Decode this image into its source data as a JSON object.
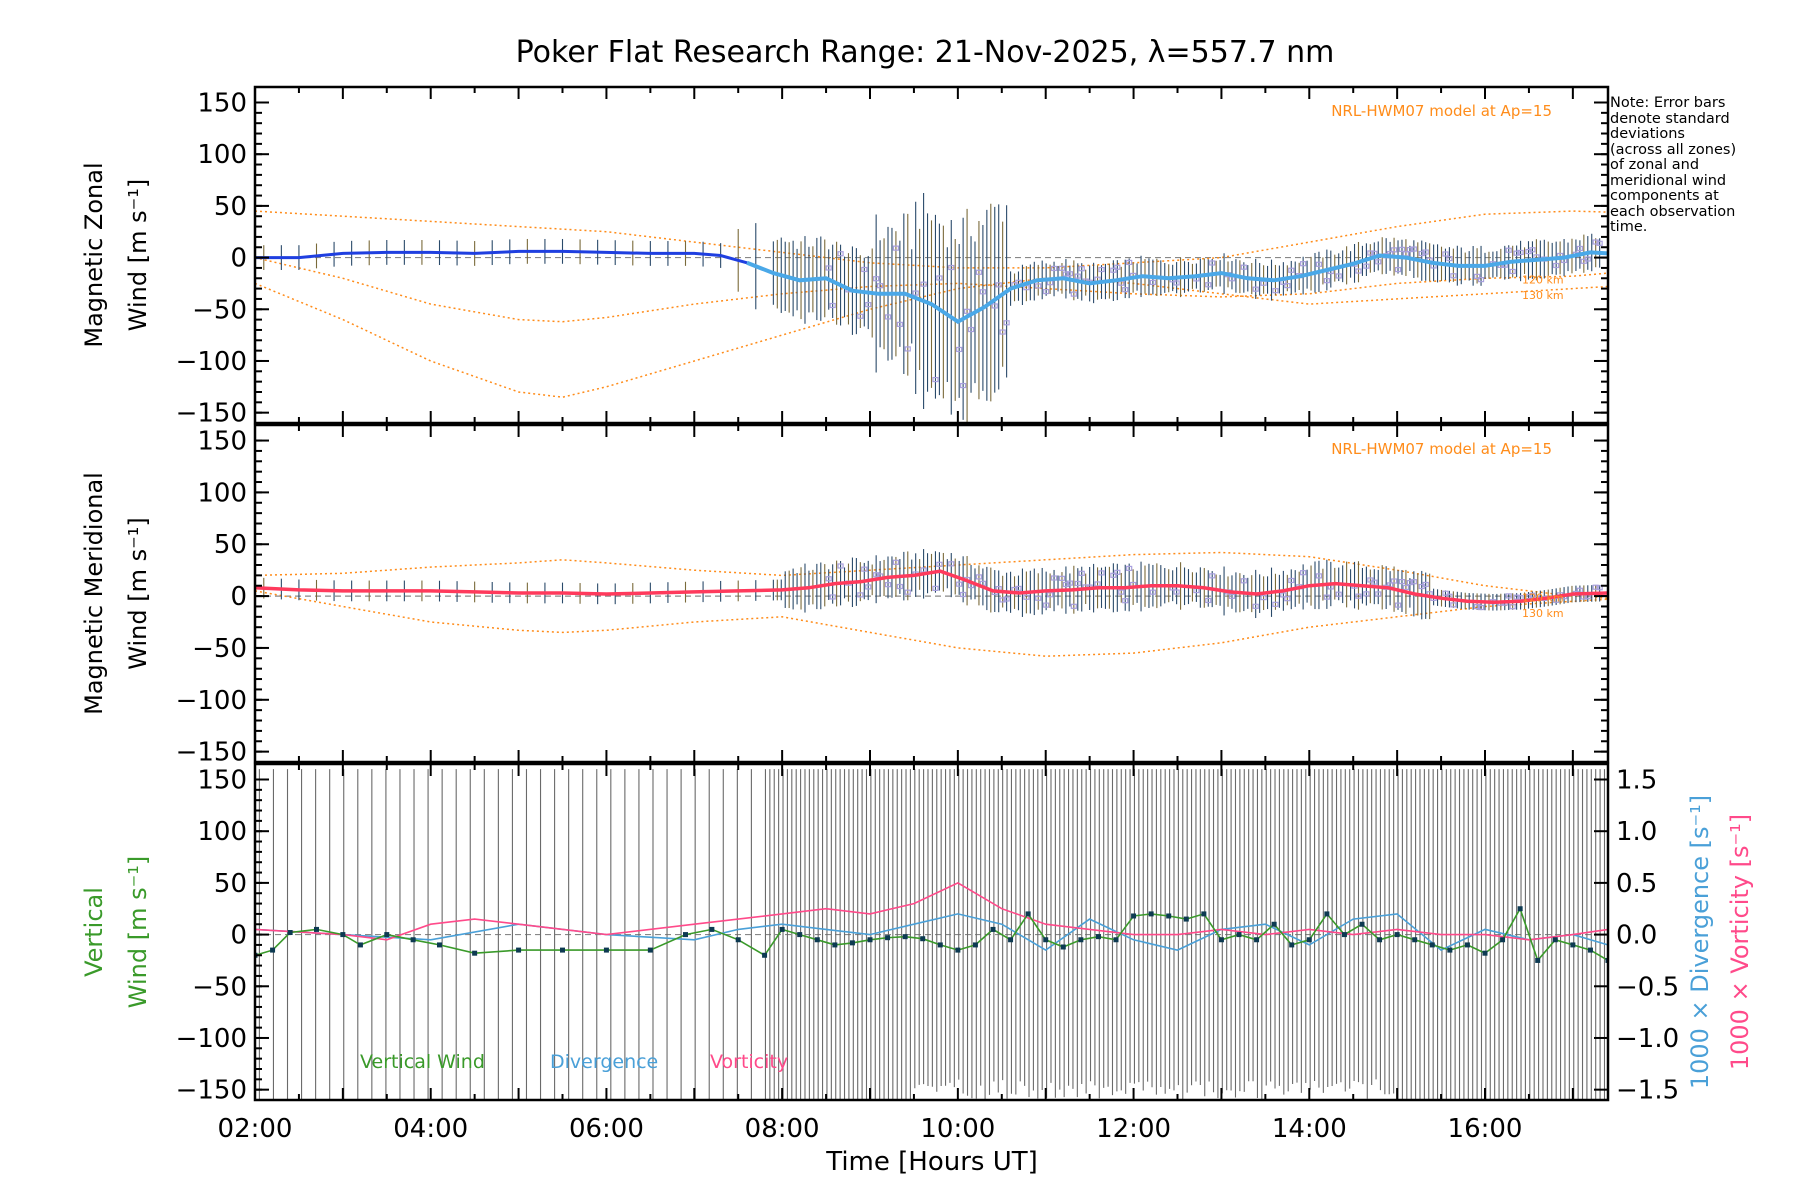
{
  "title": "Poker Flat Research Range: 21-Nov-2025, λ=557.7 nm",
  "note_lines": [
    "Note: Error bars",
    "denote standard",
    "deviations",
    "(across all zones)",
    "of zonal and",
    "meridional wind",
    "components at",
    "each observation",
    "time."
  ],
  "colors": {
    "zonal_line": "#1f3fe0",
    "zonal_line_light": "#4aa8e8",
    "meridional_line": "#ff3a5c",
    "model": "#ff8c1a",
    "lavender": "#a9a0de",
    "vertical": "#3a9a2a",
    "vertical_dots": "#0d3a52",
    "divergence": "#4aa0d8",
    "vorticity": "#ff4a8a",
    "error_bar": "#2a4a6a"
  },
  "chart_data": [
    {
      "type": "line",
      "panel": "zonal",
      "ylabel_line1": "Magnetic Zonal",
      "ylabel_line2": "Wind [m s⁻¹]",
      "ylim": [
        -160,
        165
      ],
      "yticks": [
        "150",
        "100",
        "50",
        "0",
        "−50",
        "−100",
        "−150"
      ],
      "ytick_values": [
        150,
        100,
        50,
        0,
        -50,
        -100,
        -150
      ],
      "model_label": "NRL-HWM07 model at Ap=15",
      "altitude_labels": [
        "120 km",
        "130 km"
      ],
      "series": [
        {
          "name": "zonal wind",
          "x": [
            2.0,
            2.5,
            3.0,
            3.5,
            4.0,
            4.5,
            5.0,
            5.5,
            6.0,
            6.5,
            7.0,
            7.3,
            7.6,
            7.9,
            8.2,
            8.5,
            8.8,
            9.1,
            9.4,
            9.7,
            10.0,
            10.3,
            10.6,
            10.9,
            11.2,
            11.5,
            11.8,
            12.1,
            12.4,
            12.7,
            13.0,
            13.3,
            13.6,
            13.9,
            14.2,
            14.5,
            14.8,
            15.1,
            15.4,
            15.7,
            16.0,
            16.3,
            16.6,
            16.9,
            17.2,
            17.4
          ],
          "values": [
            0,
            0,
            4,
            5,
            5,
            4,
            6,
            6,
            5,
            4,
            4,
            2,
            -5,
            -15,
            -22,
            -20,
            -32,
            -35,
            -35,
            -45,
            -62,
            -48,
            -30,
            -22,
            -20,
            -25,
            -22,
            -18,
            -20,
            -18,
            -15,
            -20,
            -22,
            -18,
            -12,
            -6,
            2,
            0,
            -5,
            -8,
            -8,
            -4,
            -2,
            0,
            5,
            4
          ]
        },
        {
          "name": "model 120 km",
          "x": [
            2,
            3,
            4,
            5,
            6,
            7,
            8,
            9,
            10,
            11,
            12,
            13,
            14,
            15,
            16,
            17,
            17.4
          ],
          "values": [
            45,
            40,
            35,
            30,
            25,
            15,
            5,
            -5,
            -10,
            -10,
            -5,
            0,
            15,
            30,
            42,
            45,
            44
          ]
        },
        {
          "name": "model 130 km",
          "x": [
            2,
            3,
            4,
            5,
            5.5,
            6,
            7,
            8,
            9,
            10,
            11,
            12,
            13,
            14,
            15,
            16,
            17,
            17.4
          ],
          "values": [
            -25,
            -60,
            -100,
            -130,
            -135,
            -125,
            -100,
            -75,
            -50,
            -30,
            -20,
            -25,
            -35,
            -45,
            -40,
            -35,
            -30,
            -28
          ]
        },
        {
          "name": "model mid",
          "x": [
            2,
            3,
            4,
            5,
            5.5,
            6,
            7,
            8,
            9,
            10,
            11,
            12,
            13,
            14,
            15,
            16,
            17,
            17.4
          ],
          "values": [
            0,
            -20,
            -45,
            -60,
            -62,
            -58,
            -45,
            -35,
            -28,
            -25,
            -30,
            -35,
            -38,
            -35,
            -25,
            -20,
            -18,
            -15
          ]
        }
      ]
    },
    {
      "type": "line",
      "panel": "meridional",
      "ylabel_line1": "Magnetic Meridional",
      "ylabel_line2": "Wind [m s⁻¹]",
      "ylim": [
        -160,
        165
      ],
      "yticks": [
        "150",
        "100",
        "50",
        "0",
        "−50",
        "−100",
        "−150"
      ],
      "ytick_values": [
        150,
        100,
        50,
        0,
        -50,
        -100,
        -150
      ],
      "model_label": "NRL-HWM07 model at Ap=15",
      "altitude_labels": [
        "120 km",
        "130 km"
      ],
      "series": [
        {
          "name": "meridional wind",
          "x": [
            2.0,
            2.5,
            3.0,
            3.5,
            4.0,
            4.5,
            5.0,
            5.5,
            6.0,
            6.5,
            7.0,
            7.5,
            8.0,
            8.3,
            8.6,
            8.9,
            9.2,
            9.5,
            9.8,
            10.1,
            10.4,
            10.7,
            11.0,
            11.3,
            11.6,
            11.9,
            12.2,
            12.5,
            12.8,
            13.1,
            13.4,
            13.7,
            14.0,
            14.3,
            14.6,
            14.9,
            15.2,
            15.5,
            15.8,
            16.1,
            16.4,
            16.7,
            17.0,
            17.4
          ],
          "values": [
            8,
            6,
            5,
            5,
            5,
            4,
            3,
            3,
            2,
            3,
            4,
            5,
            6,
            8,
            12,
            14,
            18,
            20,
            24,
            15,
            5,
            3,
            5,
            6,
            8,
            8,
            10,
            10,
            8,
            4,
            2,
            5,
            10,
            12,
            10,
            8,
            2,
            -2,
            -5,
            -6,
            -5,
            -2,
            2,
            3
          ]
        },
        {
          "name": "model 120 km",
          "x": [
            2,
            3,
            4,
            5,
            5.5,
            6,
            7,
            8,
            9,
            10,
            11,
            12,
            13,
            14,
            15,
            16,
            17,
            17.4
          ],
          "values": [
            20,
            22,
            28,
            32,
            35,
            32,
            25,
            20,
            25,
            30,
            35,
            40,
            42,
            38,
            25,
            10,
            0,
            -2
          ]
        },
        {
          "name": "model 130 km",
          "x": [
            2,
            3,
            4,
            5,
            5.5,
            6,
            7,
            8,
            9,
            10,
            11,
            12,
            13,
            14,
            15,
            16,
            17,
            17.4
          ],
          "values": [
            5,
            -10,
            -25,
            -33,
            -35,
            -33,
            -25,
            -20,
            -35,
            -50,
            -58,
            -55,
            -45,
            -30,
            -20,
            -10,
            -5,
            -3
          ]
        }
      ]
    },
    {
      "type": "line",
      "panel": "vertical",
      "ylabel_line1": "Vertical",
      "ylabel_line2": "Wind [m s⁻¹]",
      "ylim": [
        -160,
        165
      ],
      "yticks": [
        "150",
        "100",
        "50",
        "0",
        "−50",
        "−100",
        "−150"
      ],
      "ytick_values": [
        150,
        100,
        50,
        0,
        -50,
        -100,
        -150
      ],
      "right_yticks": [
        "1.5",
        "1.0",
        "0.5",
        "0.0",
        "−0.5",
        "−1.0",
        "−1.5"
      ],
      "right_ytick_values": [
        1.5,
        1.0,
        0.5,
        0.0,
        -0.5,
        -1.0,
        -1.5
      ],
      "right_ylim": [
        -1.6,
        1.65
      ],
      "right_label_divergence": "1000 × Divergence [s⁻¹]",
      "right_label_vorticity": "1000 × Vorticity [s⁻¹]",
      "legend": [
        "Vertical Wind",
        "Divergence",
        "Vorticity"
      ],
      "series": [
        {
          "name": "vertical wind",
          "x": [
            2.0,
            2.2,
            2.4,
            2.7,
            3.0,
            3.2,
            3.5,
            3.8,
            4.1,
            4.5,
            5.0,
            5.5,
            6.0,
            6.5,
            6.9,
            7.2,
            7.5,
            7.8,
            8.0,
            8.2,
            8.4,
            8.6,
            8.8,
            9.0,
            9.2,
            9.4,
            9.6,
            9.8,
            10.0,
            10.2,
            10.4,
            10.6,
            10.8,
            11.0,
            11.2,
            11.4,
            11.6,
            11.8,
            12.0,
            12.2,
            12.4,
            12.6,
            12.8,
            13.0,
            13.2,
            13.4,
            13.6,
            13.8,
            14.0,
            14.2,
            14.4,
            14.6,
            14.8,
            15.0,
            15.2,
            15.4,
            15.6,
            15.8,
            16.0,
            16.2,
            16.4,
            16.6,
            16.8,
            17.0,
            17.2,
            17.4
          ],
          "values": [
            -20,
            -15,
            2,
            5,
            0,
            -10,
            0,
            -5,
            -10,
            -18,
            -15,
            -15,
            -15,
            -15,
            0,
            5,
            -5,
            -20,
            5,
            0,
            -5,
            -10,
            -8,
            -5,
            -3,
            -2,
            -4,
            -10,
            -15,
            -10,
            5,
            -5,
            20,
            -5,
            -12,
            -5,
            -2,
            -5,
            18,
            20,
            18,
            15,
            20,
            -5,
            0,
            -5,
            10,
            -10,
            -5,
            20,
            0,
            10,
            -5,
            0,
            -5,
            -10,
            -15,
            -10,
            -18,
            -5,
            25,
            -25,
            -5,
            -10,
            -15,
            -25
          ]
        },
        {
          "name": "divergence",
          "x": [
            2.0,
            3.0,
            4.0,
            5.0,
            6.0,
            7.0,
            7.5,
            8.0,
            8.5,
            9.0,
            9.5,
            10.0,
            10.5,
            11.0,
            11.5,
            12.0,
            12.5,
            13.0,
            13.5,
            14.0,
            14.5,
            15.0,
            15.5,
            16.0,
            16.5,
            17.0,
            17.4
          ],
          "values": [
            0.05,
            0.0,
            -0.05,
            0.1,
            0.0,
            -0.05,
            0.05,
            0.1,
            0.05,
            0.0,
            0.1,
            0.2,
            0.1,
            -0.15,
            0.15,
            -0.05,
            -0.15,
            0.05,
            0.1,
            -0.1,
            0.15,
            0.2,
            -0.15,
            0.05,
            -0.05,
            0.0,
            -0.1
          ]
        },
        {
          "name": "vorticity",
          "x": [
            2.0,
            3.0,
            3.5,
            4.0,
            4.5,
            5.0,
            6.0,
            7.0,
            7.5,
            8.0,
            8.5,
            9.0,
            9.5,
            10.0,
            10.5,
            11.0,
            11.5,
            12.0,
            12.5,
            13.0,
            13.5,
            14.0,
            14.5,
            15.0,
            15.5,
            16.0,
            16.5,
            17.0,
            17.4
          ],
          "values": [
            0.05,
            0.0,
            -0.05,
            0.1,
            0.15,
            0.1,
            0.0,
            0.1,
            0.15,
            0.2,
            0.25,
            0.2,
            0.3,
            0.5,
            0.25,
            0.1,
            0.05,
            0.0,
            0.0,
            0.05,
            0.0,
            0.05,
            0.0,
            0.05,
            0.0,
            0.0,
            -0.05,
            0.0,
            0.05
          ]
        }
      ]
    }
  ],
  "xaxis": {
    "xlabel": "Time [Hours UT]",
    "xlim": [
      2.0,
      17.4
    ],
    "xticks": [
      "02:00",
      "04:00",
      "06:00",
      "08:00",
      "10:00",
      "12:00",
      "14:00",
      "16:00"
    ],
    "xtick_values": [
      2,
      4,
      6,
      8,
      10,
      12,
      14,
      16
    ]
  }
}
